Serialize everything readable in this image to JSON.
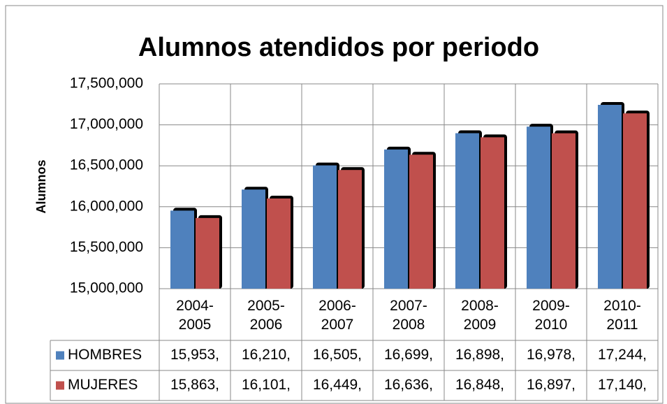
{
  "chart_data": {
    "type": "bar",
    "title": "Alumnos atendidos por periodo",
    "y_label": "Alumnos",
    "categories": [
      "2004-2005",
      "2005-2006",
      "2006-2007",
      "2007-2008",
      "2008-2009",
      "2009-2010",
      "2010-2011"
    ],
    "series": [
      {
        "name": "HOMBRES",
        "color": "#4f81bd",
        "values": [
          15953000,
          16210000,
          16505000,
          16699000,
          16898000,
          16978000,
          17244000
        ],
        "value_labels": [
          "15,953,",
          "16,210,",
          "16,505,",
          "16,699,",
          "16,898,",
          "16,978,",
          "17,244,"
        ]
      },
      {
        "name": "MUJERES",
        "color": "#c0504d",
        "values": [
          15863000,
          16101000,
          16449000,
          16636000,
          16848000,
          16897000,
          17140000
        ],
        "value_labels": [
          "15,863,",
          "16,101,",
          "16,449,",
          "16,636,",
          "16,848,",
          "16,897,",
          "17,140,"
        ]
      }
    ],
    "ylim": [
      15000000,
      17500000
    ],
    "yticks": [
      {
        "value": 15000000,
        "label": "15,000,000"
      },
      {
        "value": 15500000,
        "label": "15,500,000"
      },
      {
        "value": 16000000,
        "label": "16,000,000"
      },
      {
        "value": 16500000,
        "label": "16,500,000"
      },
      {
        "value": 17000000,
        "label": "17,000,000"
      },
      {
        "value": 17500000,
        "label": "17,500,000"
      }
    ],
    "grid": true,
    "legend": "data-table"
  }
}
